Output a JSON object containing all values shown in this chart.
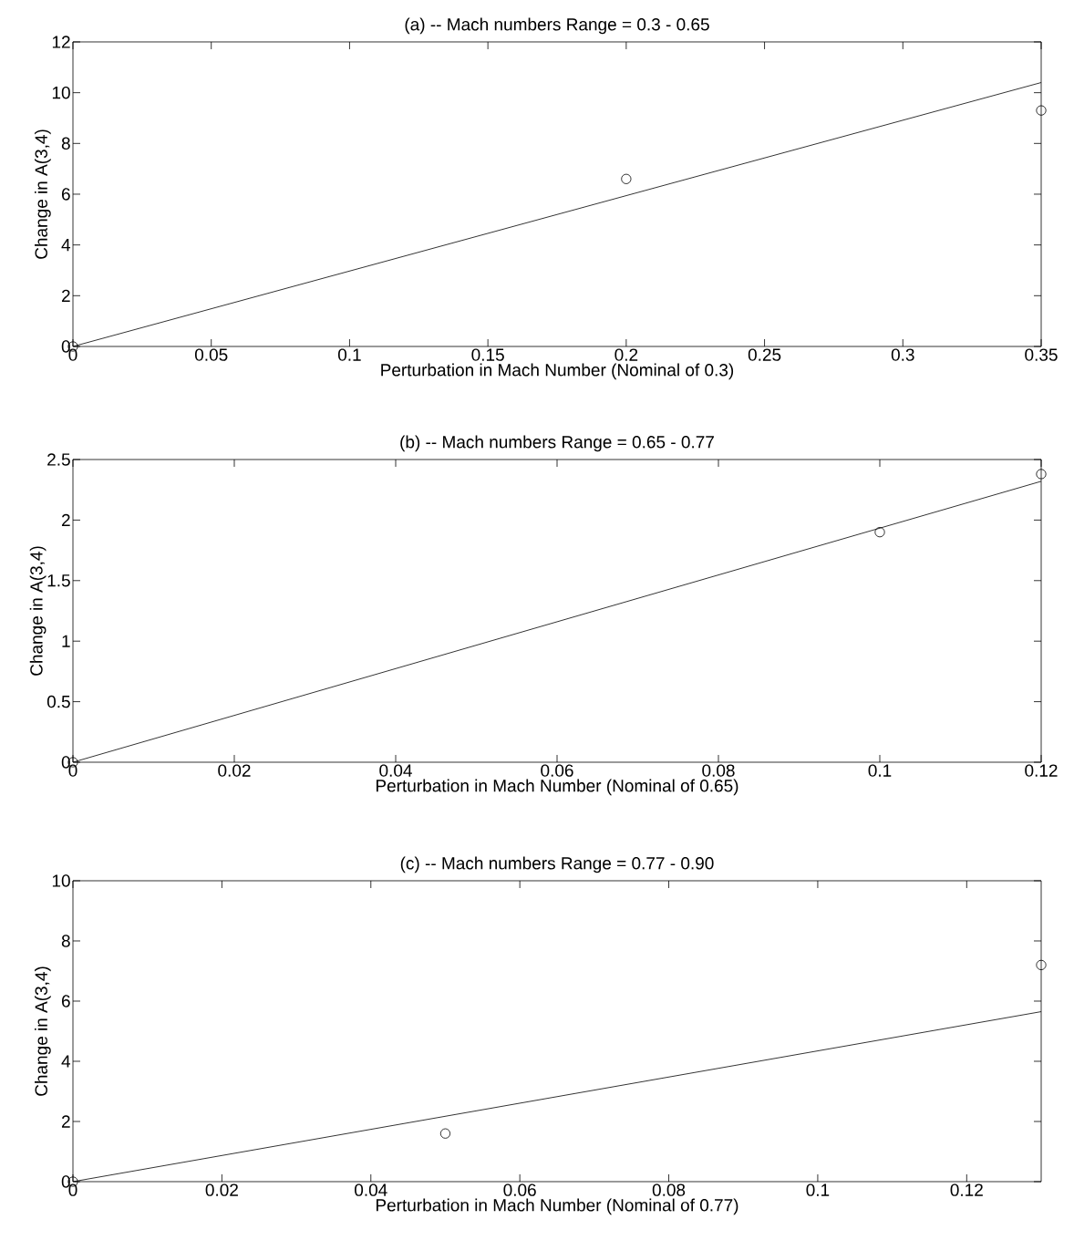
{
  "chart_data": [
    {
      "type": "scatter",
      "title": "(a) -- Mach numbers Range = 0.3 - 0.65",
      "xlabel": "Perturbation in Mach Number (Nominal of 0.3)",
      "ylabel": "Change in A(3,4)",
      "xlim": [
        0,
        0.35
      ],
      "ylim": [
        0,
        12
      ],
      "xticks": [
        0,
        0.05,
        0.1,
        0.15,
        0.2,
        0.25,
        0.3,
        0.35
      ],
      "yticks": [
        0,
        2,
        4,
        6,
        8,
        10,
        12
      ],
      "series": [
        {
          "marker": "circle",
          "color": "#000000",
          "x": [
            0,
            0.2,
            0.35
          ],
          "values": [
            0,
            6.6,
            9.3
          ]
        },
        {
          "type": "line",
          "color": "#000000",
          "x": [
            0,
            0.35
          ],
          "values": [
            0,
            10.4
          ]
        }
      ]
    },
    {
      "type": "scatter",
      "title": "(b) -- Mach numbers Range = 0.65 - 0.77",
      "xlabel": "Perturbation in Mach Number (Nominal of 0.65)",
      "ylabel": "Change in A(3,4)",
      "xlim": [
        0,
        0.12
      ],
      "ylim": [
        0,
        2.5
      ],
      "xticks": [
        0,
        0.02,
        0.04,
        0.06,
        0.08,
        0.1,
        0.12
      ],
      "yticks": [
        0,
        0.5,
        1,
        1.5,
        2,
        2.5
      ],
      "series": [
        {
          "marker": "circle",
          "color": "#000000",
          "x": [
            0,
            0.1,
            0.12
          ],
          "values": [
            0,
            1.9,
            2.38
          ]
        },
        {
          "type": "line",
          "color": "#000000",
          "x": [
            0,
            0.12
          ],
          "values": [
            0,
            2.32
          ]
        }
      ]
    },
    {
      "type": "scatter",
      "title": "(c) -- Mach numbers Range = 0.77 - 0.90",
      "xlabel": "Perturbation in Mach Number (Nominal of 0.77)",
      "ylabel": "Change in A(3,4)",
      "xlim": [
        0,
        0.13
      ],
      "ylim": [
        0,
        10
      ],
      "xticks": [
        0,
        0.02,
        0.04,
        0.06,
        0.08,
        0.1,
        0.12
      ],
      "yticks": [
        0,
        2,
        4,
        6,
        8,
        10
      ],
      "series": [
        {
          "marker": "circle",
          "color": "#000000",
          "x": [
            0,
            0.05,
            0.13
          ],
          "values": [
            0,
            1.6,
            7.2
          ]
        },
        {
          "type": "line",
          "color": "#000000",
          "x": [
            0,
            0.13
          ],
          "values": [
            0,
            5.65
          ]
        }
      ]
    }
  ]
}
